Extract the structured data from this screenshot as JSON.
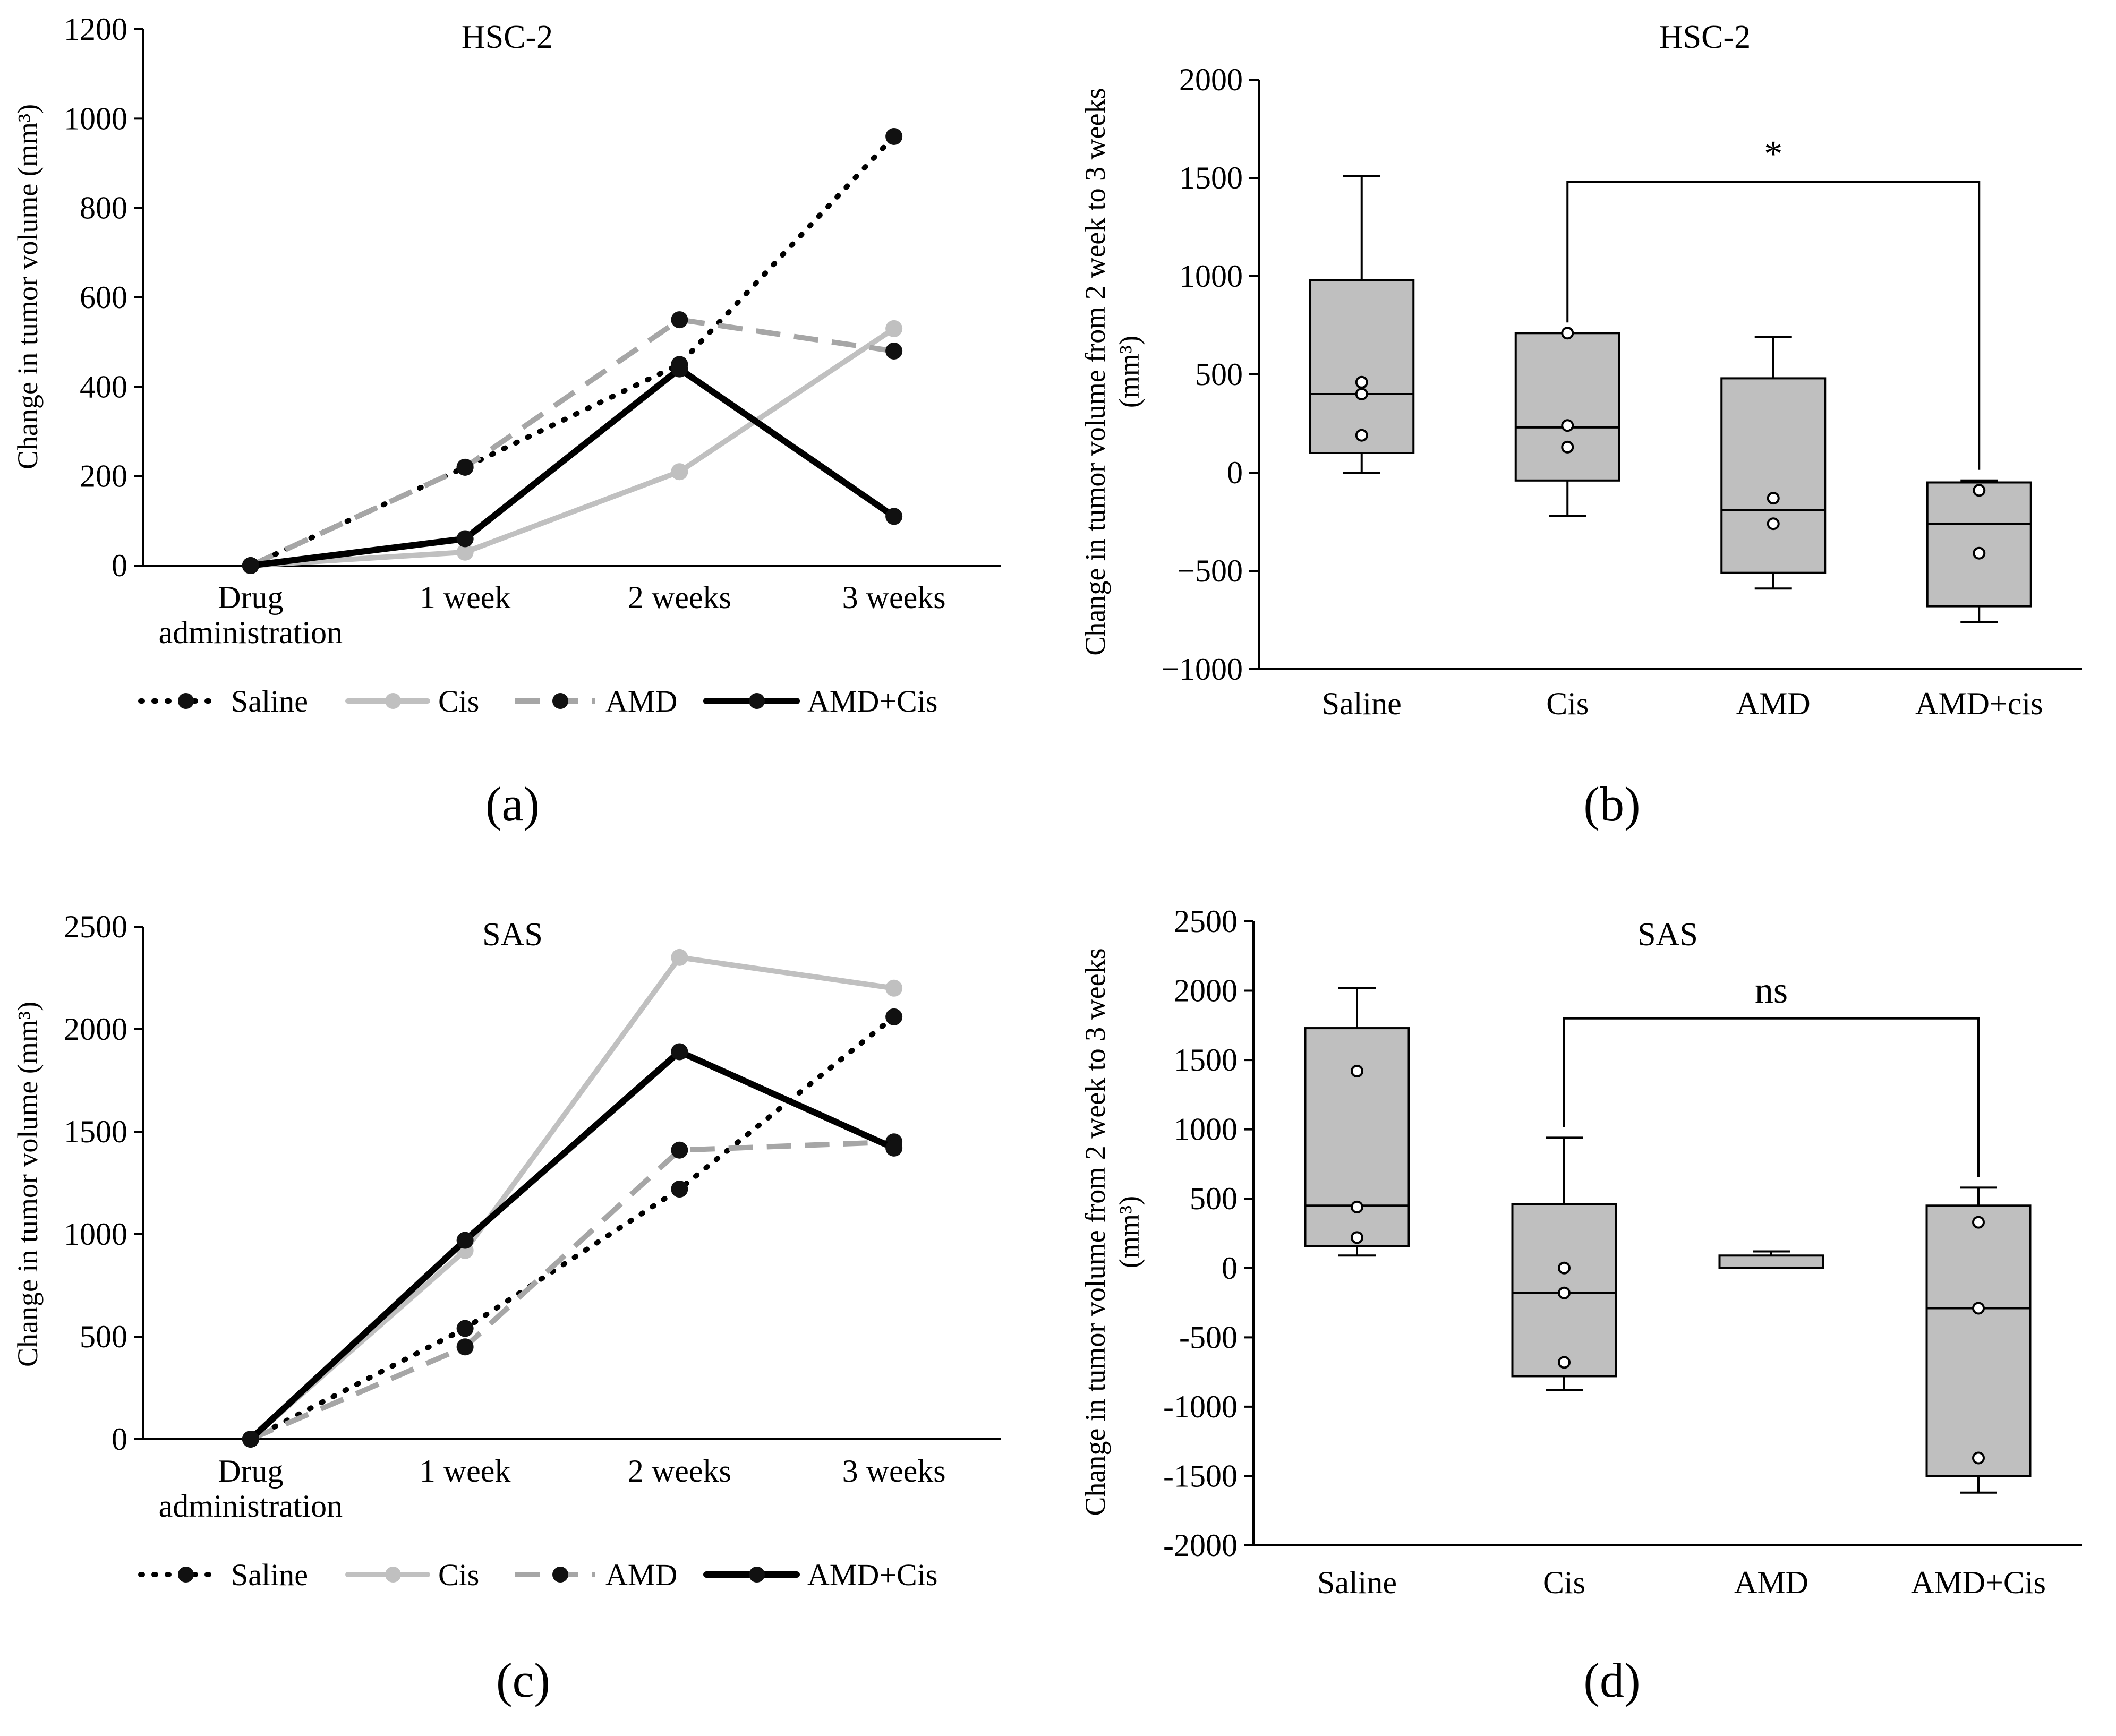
{
  "colors": {
    "saline": "#000000",
    "cis": "#c0c0c0",
    "amd": "#a6a6a6",
    "amd_cis": "#000000",
    "box_fill": "#bfbfbf",
    "marker_dark": "#111111"
  },
  "chart_data": [
    {
      "id": "a",
      "type": "line",
      "panel_label": "(a)",
      "title": "HSC-2",
      "ylabel": "Change in tumor volume (mm³)",
      "xlabel": "",
      "ylim": [
        0,
        1200
      ],
      "yticks": [
        0,
        200,
        400,
        600,
        800,
        1000,
        1200
      ],
      "categories": [
        "Drug\nadministration",
        "1 week",
        "2 weeks",
        "3 weeks"
      ],
      "series": [
        {
          "name": "Saline",
          "values": [
            0,
            220,
            450,
            960
          ]
        },
        {
          "name": "Cis",
          "values": [
            0,
            30,
            210,
            530
          ]
        },
        {
          "name": "AMD",
          "values": [
            0,
            220,
            550,
            480
          ]
        },
        {
          "name": "AMD+Cis",
          "values": [
            0,
            60,
            440,
            110
          ]
        }
      ]
    },
    {
      "id": "b",
      "type": "box",
      "panel_label": "(b)",
      "title": "HSC-2",
      "ylabel": "Change in tumor volume from 2 week to 3 weeks (mm³)",
      "xlabel": "",
      "ylim": [
        -1000,
        2000
      ],
      "yticks": [
        -1000,
        -500,
        0,
        500,
        1000,
        1500,
        2000
      ],
      "ytick_labels": [
        "−1000",
        "−500",
        "0",
        "500",
        "1000",
        "1500",
        "2000"
      ],
      "categories": [
        "Saline",
        "Cis",
        "AMD",
        "AMD+cis"
      ],
      "boxes": [
        {
          "whisker_low": 0,
          "q1": 100,
          "median": 400,
          "q3": 980,
          "whisker_high": 1510,
          "points": [
            190,
            400,
            460
          ]
        },
        {
          "whisker_low": -220,
          "q1": -40,
          "median": 230,
          "q3": 710,
          "whisker_high": 710,
          "points": [
            130,
            240,
            710
          ]
        },
        {
          "whisker_low": -590,
          "q1": -510,
          "median": -190,
          "q3": 480,
          "whisker_high": 690,
          "points": [
            -130,
            -260
          ]
        },
        {
          "whisker_low": -760,
          "q1": -680,
          "median": -260,
          "q3": -50,
          "whisker_high": -40,
          "points": [
            -90,
            -410
          ]
        }
      ],
      "significance": {
        "from": "Cis",
        "to": "AMD+cis",
        "label": "*"
      }
    },
    {
      "id": "c",
      "type": "line",
      "panel_label": "(c)",
      "title": "SAS",
      "ylabel": "Change in tumor volume (mm³)",
      "xlabel": "",
      "ylim": [
        0,
        2500
      ],
      "yticks": [
        0,
        500,
        1000,
        1500,
        2000,
        2500
      ],
      "categories": [
        "Drug\nadministration",
        "1 week",
        "2 weeks",
        "3 weeks"
      ],
      "series": [
        {
          "name": "Saline",
          "values": [
            0,
            540,
            1220,
            2060
          ]
        },
        {
          "name": "Cis",
          "values": [
            0,
            920,
            2350,
            2200
          ]
        },
        {
          "name": "AMD",
          "values": [
            0,
            450,
            1410,
            1450
          ]
        },
        {
          "name": "AMD+Cis",
          "values": [
            0,
            970,
            1890,
            1420
          ]
        }
      ]
    },
    {
      "id": "d",
      "type": "box",
      "panel_label": "(d)",
      "title": "SAS",
      "ylabel": "Change in tumor volume from 2 week to 3 weeks (mm³)",
      "xlabel": "",
      "ylim": [
        -2000,
        2500
      ],
      "yticks": [
        -2000,
        -1500,
        -1000,
        -500,
        0,
        500,
        1000,
        1500,
        2000,
        2500
      ],
      "ytick_labels": [
        "-2000",
        "-1500",
        "-1000",
        "-500",
        "0",
        "500",
        "1000",
        "1500",
        "2000",
        "2500"
      ],
      "categories": [
        "Saline",
        "Cis",
        "AMD",
        "AMD+Cis"
      ],
      "boxes": [
        {
          "whisker_low": 90,
          "q1": 160,
          "median": 450,
          "q3": 1730,
          "whisker_high": 2020,
          "points": [
            220,
            440,
            1420
          ]
        },
        {
          "whisker_low": -880,
          "q1": -780,
          "median": -180,
          "q3": 460,
          "whisker_high": 940,
          "points": [
            -680,
            -180,
            0
          ]
        },
        {
          "whisker_low": 0,
          "q1": 0,
          "median": 0,
          "q3": 90,
          "whisker_high": 120,
          "points": []
        },
        {
          "whisker_low": -1620,
          "q1": -1500,
          "median": -290,
          "q3": 450,
          "whisker_high": 580,
          "points": [
            -1370,
            -290,
            330
          ]
        }
      ],
      "significance": {
        "from": "Cis",
        "to": "AMD+Cis",
        "label": "ns"
      }
    }
  ]
}
